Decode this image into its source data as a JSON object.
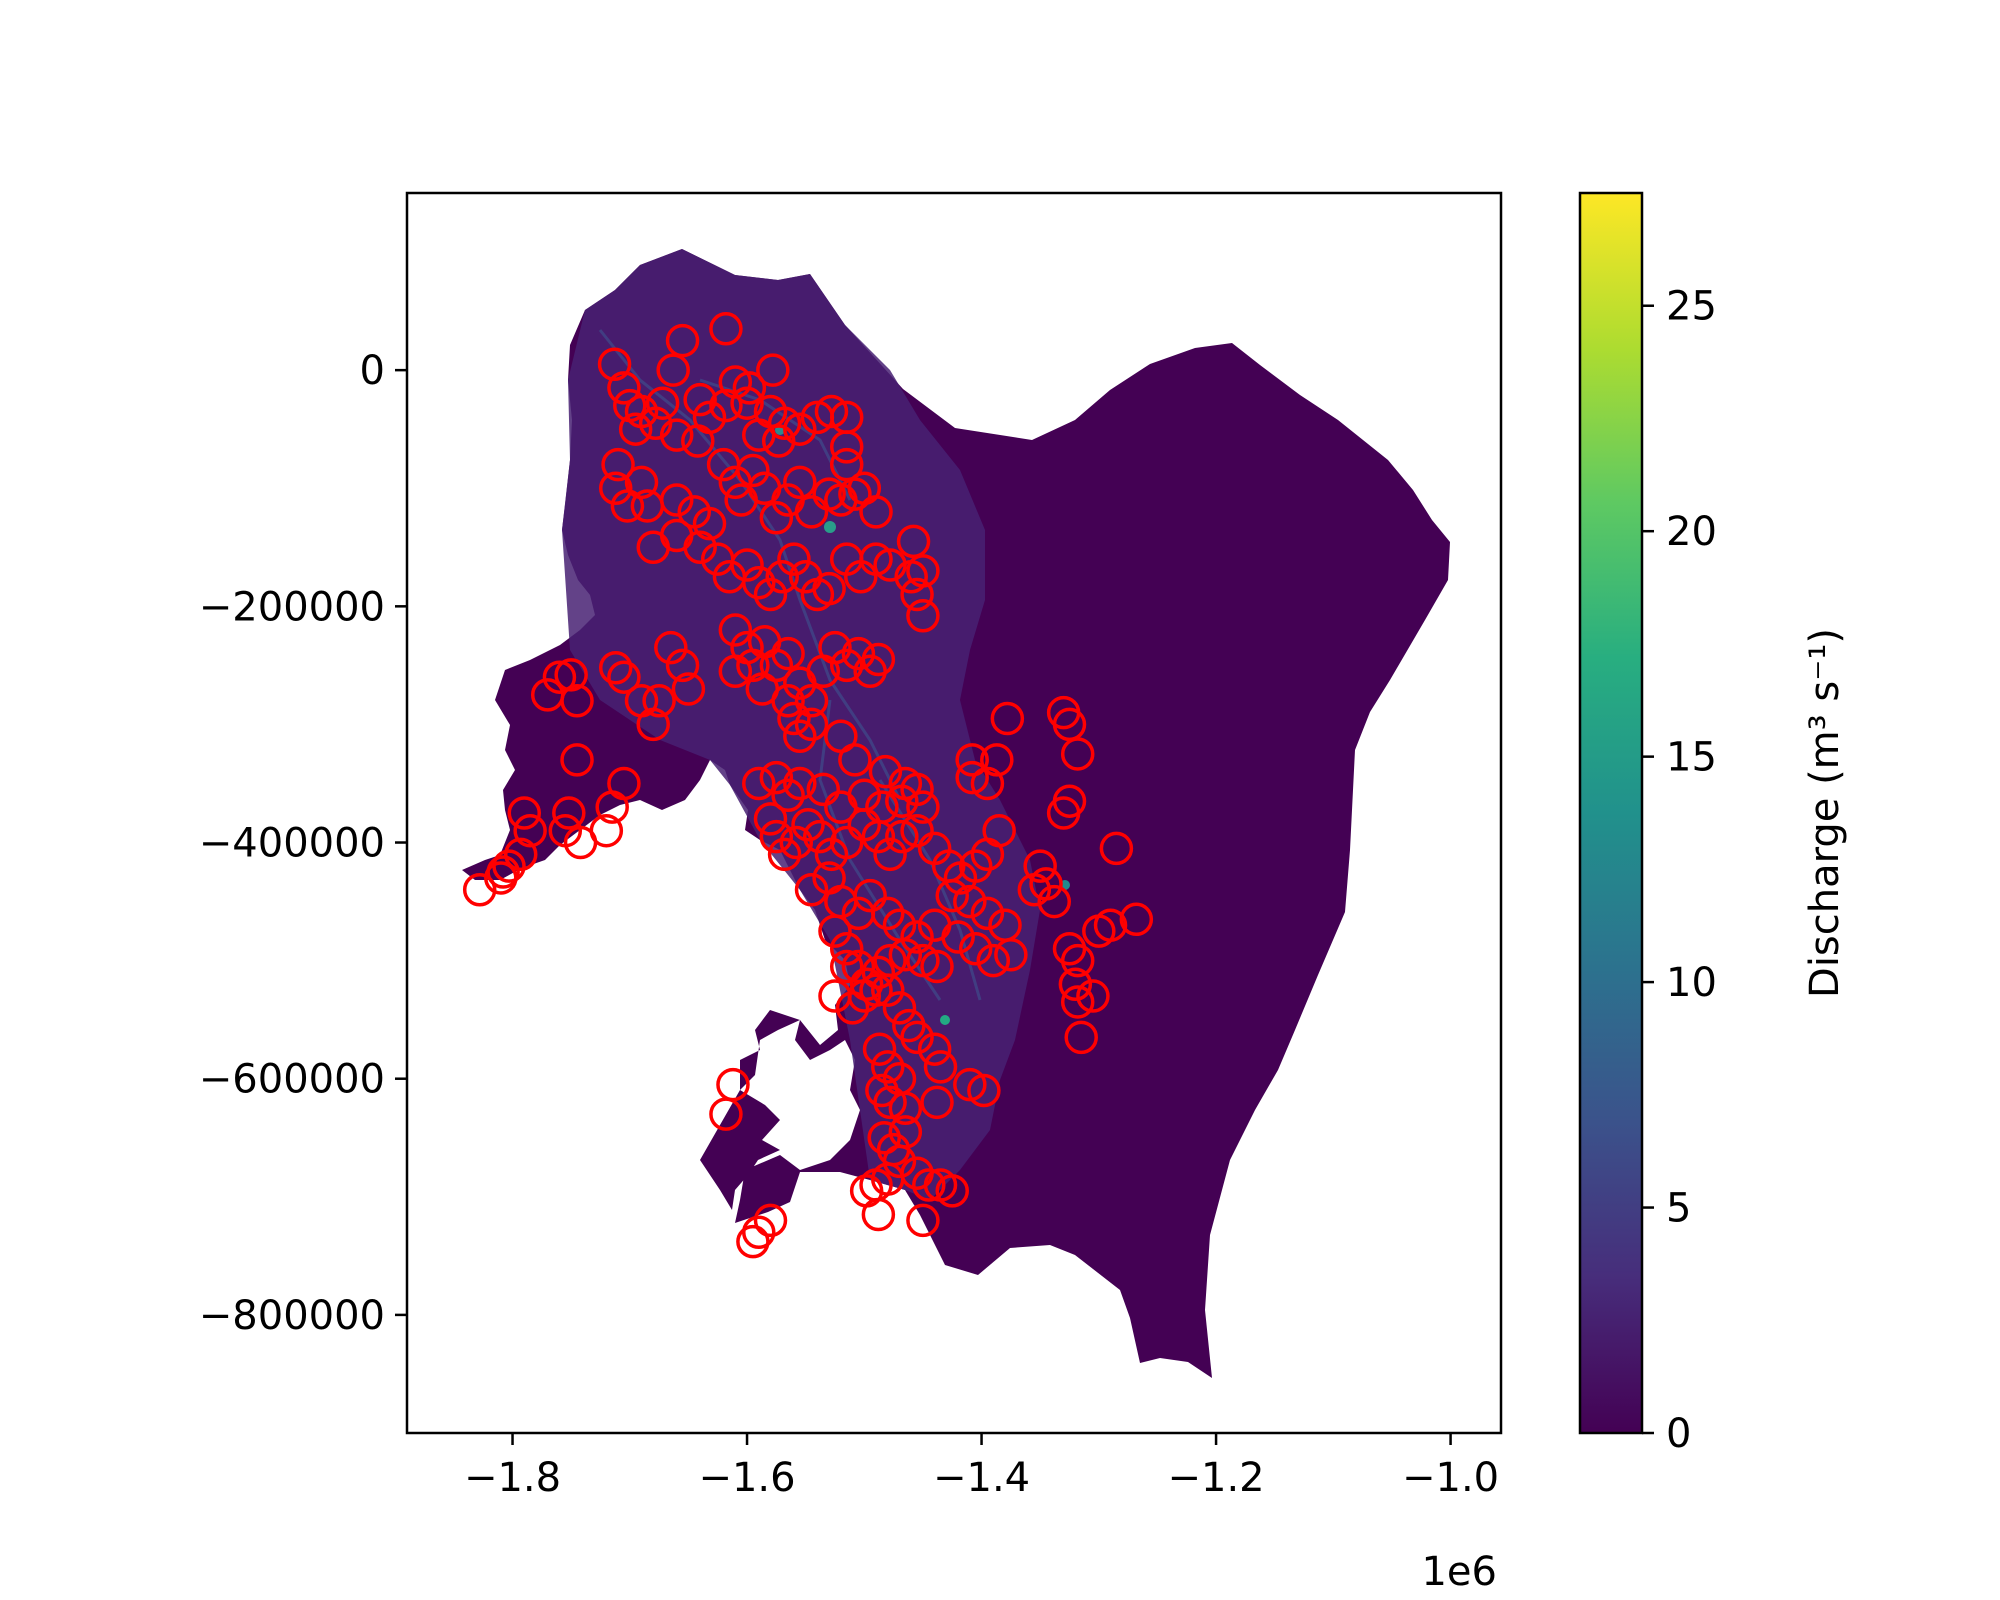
{
  "chart_data": {
    "type": "scatter",
    "title": "",
    "xlabel": "",
    "ylabel": "",
    "x_offset_label": "1e6",
    "xlim": [
      -1.89,
      -0.957
    ],
    "ylim": [
      -900000,
      150000
    ],
    "x_ticks": [
      -1.8,
      -1.6,
      -1.4,
      -1.2,
      -1.0
    ],
    "x_tick_labels": [
      "−1.8",
      "−1.6",
      "−1.4",
      "−1.2",
      "−1.0"
    ],
    "y_ticks": [
      0,
      -200000,
      -400000,
      -600000,
      -800000
    ],
    "y_tick_labels": [
      "0",
      "−200000",
      "−400000",
      "−600000",
      "−800000"
    ],
    "grid": false,
    "background_field": {
      "description": "discharge field over glacier outline",
      "dominant_color": "#440154"
    },
    "colorbar": {
      "label": "Discharge (m³ s⁻¹)",
      "range": [
        0,
        27.5
      ],
      "colormap": "viridis",
      "ticks": [
        0,
        5,
        10,
        15,
        20,
        25
      ],
      "tick_labels": [
        "0",
        "5",
        "10",
        "15",
        "20",
        "25"
      ]
    },
    "marker": {
      "shape": "open-circle",
      "color": "#ff0000"
    },
    "points": [
      [
        -1.713,
        5000
      ],
      [
        -1.655,
        25000
      ],
      [
        -1.618,
        35000
      ],
      [
        -1.663,
        0
      ],
      [
        -1.578,
        0
      ],
      [
        -1.61,
        -10000
      ],
      [
        -1.598,
        -15000
      ],
      [
        -1.705,
        -15000
      ],
      [
        -1.7,
        -30000
      ],
      [
        -1.69,
        -35000
      ],
      [
        -1.672,
        -28000
      ],
      [
        -1.64,
        -25000
      ],
      [
        -1.632,
        -40000
      ],
      [
        -1.618,
        -30000
      ],
      [
        -1.6,
        -28000
      ],
      [
        -1.58,
        -35000
      ],
      [
        -1.568,
        -45000
      ],
      [
        -1.555,
        -50000
      ],
      [
        -1.54,
        -40000
      ],
      [
        -1.528,
        -35000
      ],
      [
        -1.515,
        -40000
      ],
      [
        -1.695,
        -50000
      ],
      [
        -1.678,
        -45000
      ],
      [
        -1.66,
        -55000
      ],
      [
        -1.642,
        -60000
      ],
      [
        -1.59,
        -55000
      ],
      [
        -1.573,
        -60000
      ],
      [
        -1.515,
        -65000
      ],
      [
        -1.71,
        -80000
      ],
      [
        -1.712,
        -100000
      ],
      [
        -1.702,
        -115000
      ],
      [
        -1.69,
        -95000
      ],
      [
        -1.685,
        -115000
      ],
      [
        -1.68,
        -150000
      ],
      [
        -1.66,
        -110000
      ],
      [
        -1.645,
        -120000
      ],
      [
        -1.632,
        -130000
      ],
      [
        -1.62,
        -80000
      ],
      [
        -1.61,
        -95000
      ],
      [
        -1.605,
        -110000
      ],
      [
        -1.595,
        -85000
      ],
      [
        -1.585,
        -100000
      ],
      [
        -1.575,
        -125000
      ],
      [
        -1.565,
        -110000
      ],
      [
        -1.555,
        -95000
      ],
      [
        -1.545,
        -120000
      ],
      [
        -1.53,
        -105000
      ],
      [
        -1.52,
        -110000
      ],
      [
        -1.508,
        -105000
      ],
      [
        -1.515,
        -80000
      ],
      [
        -1.5,
        -100000
      ],
      [
        -1.49,
        -120000
      ],
      [
        -1.66,
        -140000
      ],
      [
        -1.64,
        -150000
      ],
      [
        -1.625,
        -160000
      ],
      [
        -1.615,
        -175000
      ],
      [
        -1.6,
        -165000
      ],
      [
        -1.59,
        -180000
      ],
      [
        -1.58,
        -190000
      ],
      [
        -1.57,
        -175000
      ],
      [
        -1.56,
        -160000
      ],
      [
        -1.55,
        -175000
      ],
      [
        -1.54,
        -190000
      ],
      [
        -1.53,
        -185000
      ],
      [
        -1.515,
        -160000
      ],
      [
        -1.503,
        -175000
      ],
      [
        -1.49,
        -160000
      ],
      [
        -1.478,
        -165000
      ],
      [
        -1.458,
        -145000
      ],
      [
        -1.46,
        -175000
      ],
      [
        -1.45,
        -170000
      ],
      [
        -1.455,
        -190000
      ],
      [
        -1.45,
        -208000
      ],
      [
        -1.61,
        -220000
      ],
      [
        -1.6,
        -235000
      ],
      [
        -1.595,
        -250000
      ],
      [
        -1.585,
        -230000
      ],
      [
        -1.575,
        -250000
      ],
      [
        -1.565,
        -240000
      ],
      [
        -1.555,
        -265000
      ],
      [
        -1.545,
        -280000
      ],
      [
        -1.535,
        -255000
      ],
      [
        -1.525,
        -235000
      ],
      [
        -1.515,
        -250000
      ],
      [
        -1.505,
        -240000
      ],
      [
        -1.495,
        -255000
      ],
      [
        -1.488,
        -245000
      ],
      [
        -1.61,
        -255000
      ],
      [
        -1.587,
        -270000
      ],
      [
        -1.665,
        -235000
      ],
      [
        -1.655,
        -250000
      ],
      [
        -1.65,
        -270000
      ],
      [
        -1.675,
        -280000
      ],
      [
        -1.69,
        -280000
      ],
      [
        -1.68,
        -300000
      ],
      [
        -1.712,
        -252000
      ],
      [
        -1.705,
        -260000
      ],
      [
        -1.76,
        -260000
      ],
      [
        -1.77,
        -275000
      ],
      [
        -1.75,
        -258000
      ],
      [
        -1.745,
        -280000
      ],
      [
        -1.745,
        -330000
      ],
      [
        -1.705,
        -350000
      ],
      [
        -1.715,
        -370000
      ],
      [
        -1.72,
        -390000
      ],
      [
        -1.752,
        -375000
      ],
      [
        -1.755,
        -390000
      ],
      [
        -1.742,
        -400000
      ],
      [
        -1.79,
        -375000
      ],
      [
        -1.785,
        -390000
      ],
      [
        -1.793,
        -410000
      ],
      [
        -1.803,
        -420000
      ],
      [
        -1.808,
        -425000
      ],
      [
        -1.81,
        -430000
      ],
      [
        -1.828,
        -440000
      ],
      [
        -1.565,
        -280000
      ],
      [
        -1.56,
        -295000
      ],
      [
        -1.555,
        -310000
      ],
      [
        -1.545,
        -300000
      ],
      [
        -1.52,
        -310000
      ],
      [
        -1.508,
        -330000
      ],
      [
        -1.482,
        -340000
      ],
      [
        -1.465,
        -350000
      ],
      [
        -1.455,
        -355000
      ],
      [
        -1.378,
        -295000
      ],
      [
        -1.33,
        -290000
      ],
      [
        -1.325,
        -300000
      ],
      [
        -1.318,
        -325000
      ],
      [
        -1.408,
        -330000
      ],
      [
        -1.387,
        -330000
      ],
      [
        -1.395,
        -350000
      ],
      [
        -1.408,
        -345000
      ],
      [
        -1.59,
        -350000
      ],
      [
        -1.575,
        -345000
      ],
      [
        -1.565,
        -360000
      ],
      [
        -1.555,
        -350000
      ],
      [
        -1.535,
        -355000
      ],
      [
        -1.52,
        -370000
      ],
      [
        -1.5,
        -360000
      ],
      [
        -1.485,
        -370000
      ],
      [
        -1.468,
        -365000
      ],
      [
        -1.45,
        -370000
      ],
      [
        -1.58,
        -380000
      ],
      [
        -1.575,
        -395000
      ],
      [
        -1.568,
        -410000
      ],
      [
        -1.558,
        -400000
      ],
      [
        -1.548,
        -385000
      ],
      [
        -1.538,
        -395000
      ],
      [
        -1.528,
        -410000
      ],
      [
        -1.515,
        -400000
      ],
      [
        -1.5,
        -385000
      ],
      [
        -1.488,
        -395000
      ],
      [
        -1.478,
        -410000
      ],
      [
        -1.468,
        -395000
      ],
      [
        -1.455,
        -390000
      ],
      [
        -1.44,
        -405000
      ],
      [
        -1.428,
        -420000
      ],
      [
        -1.418,
        -430000
      ],
      [
        -1.405,
        -420000
      ],
      [
        -1.395,
        -410000
      ],
      [
        -1.385,
        -390000
      ],
      [
        -1.33,
        -375000
      ],
      [
        -1.325,
        -365000
      ],
      [
        -1.35,
        -420000
      ],
      [
        -1.355,
        -440000
      ],
      [
        -1.345,
        -435000
      ],
      [
        -1.338,
        -450000
      ],
      [
        -1.285,
        -405000
      ],
      [
        -1.545,
        -440000
      ],
      [
        -1.53,
        -430000
      ],
      [
        -1.52,
        -450000
      ],
      [
        -1.505,
        -460000
      ],
      [
        -1.495,
        -445000
      ],
      [
        -1.48,
        -460000
      ],
      [
        -1.47,
        -470000
      ],
      [
        -1.455,
        -480000
      ],
      [
        -1.44,
        -470000
      ],
      [
        -1.425,
        -445000
      ],
      [
        -1.41,
        -450000
      ],
      [
        -1.395,
        -460000
      ],
      [
        -1.38,
        -470000
      ],
      [
        -1.42,
        -480000
      ],
      [
        -1.405,
        -490000
      ],
      [
        -1.39,
        -500000
      ],
      [
        -1.375,
        -495000
      ],
      [
        -1.325,
        -490000
      ],
      [
        -1.318,
        -500000
      ],
      [
        -1.3,
        -475000
      ],
      [
        -1.29,
        -470000
      ],
      [
        -1.268,
        -465000
      ],
      [
        -1.525,
        -475000
      ],
      [
        -1.515,
        -490000
      ],
      [
        -1.505,
        -505000
      ],
      [
        -1.498,
        -520000
      ],
      [
        -1.488,
        -510000
      ],
      [
        -1.478,
        -500000
      ],
      [
        -1.465,
        -495000
      ],
      [
        -1.45,
        -500000
      ],
      [
        -1.438,
        -505000
      ],
      [
        -1.48,
        -525000
      ],
      [
        -1.47,
        -540000
      ],
      [
        -1.462,
        -555000
      ],
      [
        -1.455,
        -565000
      ],
      [
        -1.32,
        -520000
      ],
      [
        -1.318,
        -535000
      ],
      [
        -1.305,
        -530000
      ],
      [
        -1.315,
        -565000
      ],
      [
        -1.525,
        -530000
      ],
      [
        -1.515,
        -505000
      ],
      [
        -1.51,
        -540000
      ],
      [
        -1.5,
        -530000
      ],
      [
        -1.49,
        -525000
      ],
      [
        -1.487,
        -575000
      ],
      [
        -1.48,
        -590000
      ],
      [
        -1.47,
        -600000
      ],
      [
        -1.44,
        -575000
      ],
      [
        -1.435,
        -590000
      ],
      [
        -1.41,
        -605000
      ],
      [
        -1.398,
        -610000
      ],
      [
        -1.485,
        -610000
      ],
      [
        -1.478,
        -620000
      ],
      [
        -1.465,
        -625000
      ],
      [
        -1.438,
        -620000
      ],
      [
        -1.612,
        -605000
      ],
      [
        -1.618,
        -630000
      ],
      [
        -1.483,
        -650000
      ],
      [
        -1.475,
        -660000
      ],
      [
        -1.465,
        -645000
      ],
      [
        -1.47,
        -670000
      ],
      [
        -1.48,
        -685000
      ],
      [
        -1.49,
        -690000
      ],
      [
        -1.498,
        -695000
      ],
      [
        -1.455,
        -680000
      ],
      [
        -1.445,
        -690000
      ],
      [
        -1.435,
        -690000
      ],
      [
        -1.425,
        -695000
      ],
      [
        -1.488,
        -715000
      ],
      [
        -1.45,
        -720000
      ],
      [
        -1.58,
        -720000
      ],
      [
        -1.59,
        -730000
      ],
      [
        -1.595,
        -738000
      ]
    ]
  }
}
